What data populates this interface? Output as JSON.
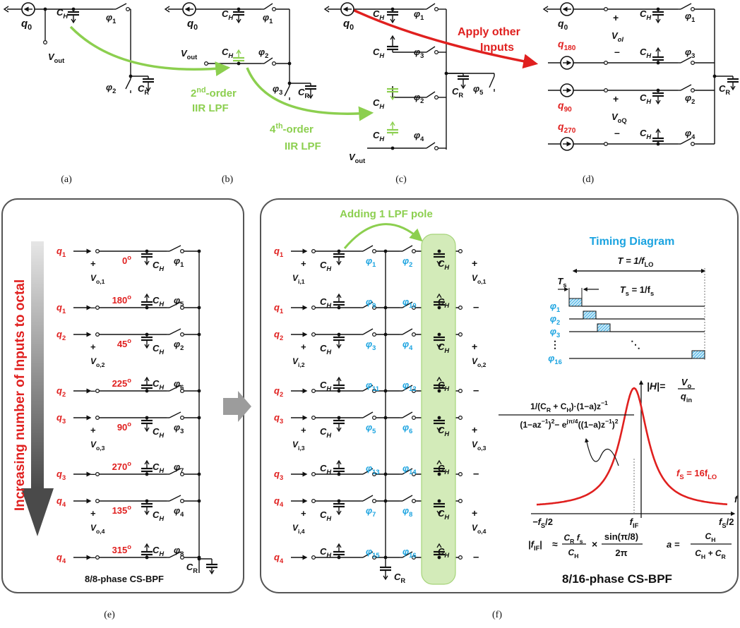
{
  "panel_captions": [
    "(a)",
    "(b)",
    "(c)",
    "(d)",
    "(e)",
    "(f)"
  ],
  "colors": {
    "red": "#e0201f",
    "green": "#8ccf4f",
    "cyan": "#1aa3e0",
    "black": "#111111",
    "panel_border": "#555555",
    "arrow_gray": "#9c9c9c"
  },
  "top": {
    "a": {
      "q": "q",
      "q_sub": "0",
      "ch": "C",
      "ch_sub": "H",
      "vout": "V",
      "vout_sub": "out",
      "phi1": "φ",
      "phi1_sub": "1",
      "phi2": "φ",
      "phi2_sub": "2",
      "cr": "C",
      "cr_sub": "R"
    },
    "b": {
      "q": "q",
      "q_sub": "0",
      "ch": "C",
      "ch_sub": "H",
      "vout": "V",
      "vout_sub": "out",
      "phi1_sub": "1",
      "phi2_sub": "2",
      "phi3_sub": "3",
      "cr_sub": "R"
    },
    "c": {
      "q_sub": "0",
      "phi1_sub": "1",
      "phi3_sub": "3",
      "phi2_sub": "2",
      "phi4_sub": "4",
      "phi5_sub": "5",
      "cr_sub": "R",
      "vout": "V",
      "vout_sub": "out"
    },
    "d": {
      "inputs": [
        {
          "q": "q",
          "sub": "0",
          "color": "black"
        },
        {
          "q": "q",
          "sub": "180",
          "color": "red"
        },
        {
          "q": "q",
          "sub": "90",
          "color": "red"
        },
        {
          "q": "q",
          "sub": "270",
          "color": "red"
        }
      ],
      "vi": "V",
      "vi_sub": "oI",
      "vq": "V",
      "vq_sub": "oQ",
      "phis": [
        "1",
        "3",
        "2",
        "4"
      ],
      "cr_sub": "R"
    },
    "annot_2nd": [
      "2",
      "nd",
      "-order",
      "IIR LPF"
    ],
    "annot_4th": [
      "4",
      "th",
      "-order",
      "IIR LPF"
    ],
    "annot_apply": [
      "Apply other",
      "Inputs"
    ]
  },
  "e": {
    "side_label": "Increasing number of Inputs to octal",
    "rows": [
      {
        "q": "1",
        "angle": "0",
        "phi": "1",
        "v": "o,1"
      },
      {
        "q": "1",
        "angle": "180",
        "phi": "5",
        "v": ""
      },
      {
        "q": "2",
        "angle": "45",
        "phi": "2",
        "v": "o,2"
      },
      {
        "q": "2",
        "angle": "225",
        "phi": "6",
        "v": ""
      },
      {
        "q": "3",
        "angle": "90",
        "phi": "3",
        "v": "o,3"
      },
      {
        "q": "3",
        "angle": "270",
        "phi": "7",
        "v": ""
      },
      {
        "q": "4",
        "angle": "135",
        "phi": "4",
        "v": "o,4"
      },
      {
        "q": "4",
        "angle": "315",
        "phi": "8",
        "v": ""
      }
    ],
    "degree_suffix": "o",
    "title": "8/8-phase CS-BPF",
    "cr": "C",
    "cr_sub": "R"
  },
  "f": {
    "adding_pole": "Adding 1 LPF pole",
    "rows": [
      {
        "q": "1",
        "p1": "1",
        "p2": "2",
        "vi": "i,1",
        "vo": "o,1"
      },
      {
        "q": "1",
        "p1": "9",
        "p2": "10",
        "vi": "",
        "vo": ""
      },
      {
        "q": "2",
        "p1": "3",
        "p2": "4",
        "vi": "i,2",
        "vo": "o,2"
      },
      {
        "q": "2",
        "p1": "11",
        "p2": "12",
        "vi": "",
        "vo": ""
      },
      {
        "q": "3",
        "p1": "5",
        "p2": "6",
        "vi": "i,3",
        "vo": "o,3"
      },
      {
        "q": "3",
        "p1": "13",
        "p2": "14",
        "vi": "",
        "vo": ""
      },
      {
        "q": "4",
        "p1": "7",
        "p2": "8",
        "vi": "i,4",
        "vo": "o,4"
      },
      {
        "q": "4",
        "p1": "15",
        "p2": "16",
        "vi": "",
        "vo": ""
      }
    ],
    "timing": {
      "title": "Timing Diagram",
      "period": "T = 1/f",
      "period_sub": "LO",
      "ts": "T",
      "ts_sub": "s",
      "ts_def": "T",
      "ts_def_sub": "s",
      "ts_def_rhs": " = 1/f",
      "ts_def_rhs_sub": "s",
      "phases": [
        "1",
        "2",
        "3",
        "…",
        "16"
      ]
    },
    "tf": {
      "h_label": "|H|=",
      "vo": "V",
      "vo_sub": "o",
      "qin": "q",
      "qin_sub": "in",
      "num": "1/(C",
      "num_sub": "R",
      "num2": " + C",
      "num_sub2": "H",
      "num3": ")·(1−a)z",
      "num_sup": "−1",
      "den": "(1−az",
      "den_sup1": "−1",
      "den2": ")",
      "den_sup2": "2",
      "den3": "− e",
      "den_sup3": "jπ/4",
      "den4": "((1−a)z",
      "den_sup4": "−1",
      "den5": ")",
      "den_sup5": "2",
      "fs_eq": "f",
      "fs_eq_sub": "S",
      "fs_eq_rhs": " = 16f",
      "fs_eq_rhs_sub": "LO",
      "x_left": "−f",
      "x_left_sub": "S",
      "x_left_tail": "/2",
      "x_mid": "f",
      "x_mid_sub": "IF",
      "x_right": "f",
      "x_right_sub": "S",
      "x_right_tail": "/2",
      "x_axis": "f",
      "fif_eq_left": "|f",
      "fif_sub": "IF",
      "fif_bar": "|",
      "approx": "≈",
      "frac1_num": "C",
      "frac1_num_sub": "R",
      "frac1_num_tail": " f",
      "frac1_num_sub2": "s",
      "frac1_den": "C",
      "frac1_den_sub": "H",
      "times": "×",
      "frac2_num": "sin(π/8)",
      "frac2_den": "2π",
      "a_eq": "a =",
      "frac3_num": "C",
      "frac3_num_sub": "H",
      "frac3_den": "C",
      "frac3_den_sub": "H",
      "frac3_den_tail": " + C",
      "frac3_den_sub2": "R"
    },
    "title": "8/16-phase CS-BPF",
    "cr": "C",
    "cr_sub": "R"
  },
  "glyph_names": {
    "ch": "C",
    "ch_sub": "H",
    "phi": "φ",
    "q": "q",
    "v": "V",
    "plus": "+",
    "minus": "−"
  }
}
